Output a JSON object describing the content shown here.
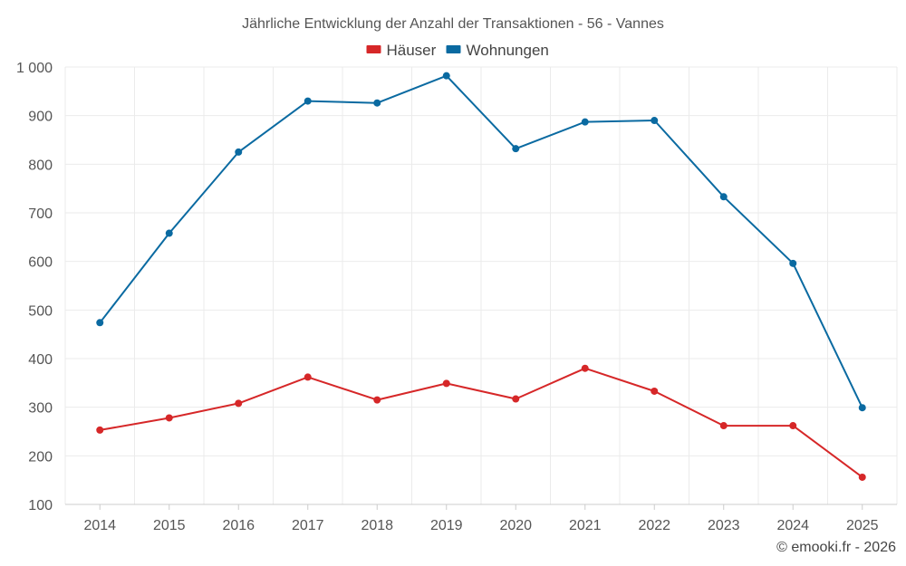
{
  "chart_data": {
    "type": "line",
    "title": "Jährliche Entwicklung der Anzahl der Transaktionen - 56 - Vannes",
    "categories": [
      "2014",
      "2015",
      "2016",
      "2017",
      "2018",
      "2019",
      "2020",
      "2021",
      "2022",
      "2023",
      "2024",
      "2025"
    ],
    "series": [
      {
        "name": "Häuser",
        "color": "#d62728",
        "values": [
          253,
          278,
          308,
          362,
          315,
          349,
          317,
          380,
          333,
          262,
          262,
          156
        ]
      },
      {
        "name": "Wohnungen",
        "color": "#0a6aa1",
        "values": [
          474,
          658,
          825,
          930,
          926,
          982,
          832,
          887,
          890,
          733,
          596,
          299
        ]
      }
    ],
    "ylim": [
      100,
      1000
    ],
    "yticks": [
      100,
      200,
      300,
      400,
      500,
      600,
      700,
      800,
      900,
      1000
    ],
    "ytick_labels": [
      "100",
      "200",
      "300",
      "400",
      "500",
      "600",
      "700",
      "800",
      "900",
      "1 000"
    ],
    "xlabel": "",
    "ylabel": "",
    "grid": true,
    "legend_position": "top-center"
  },
  "credit": "© emooki.fr - 2026"
}
